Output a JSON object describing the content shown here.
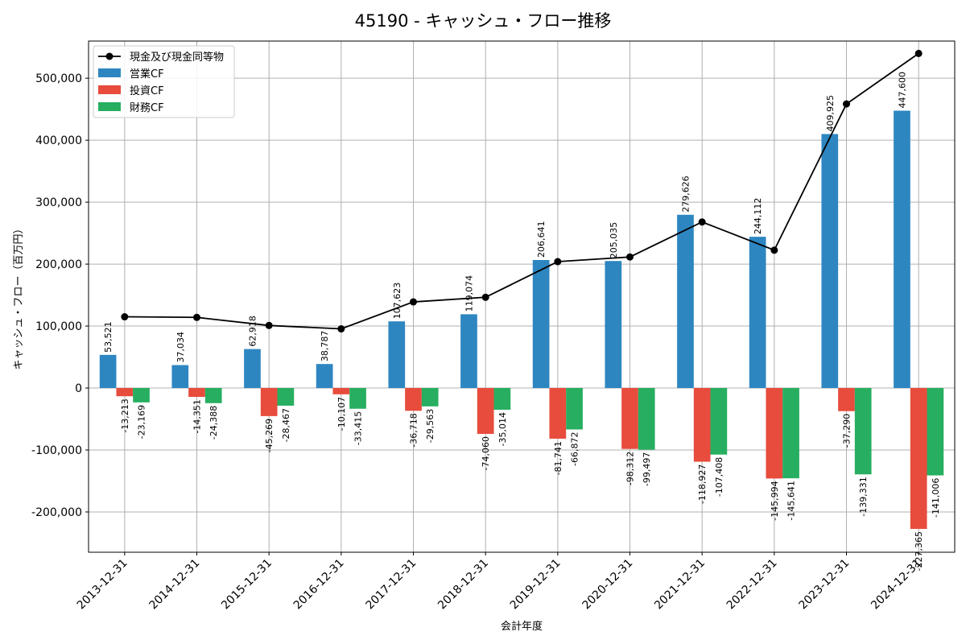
{
  "chart_data": {
    "type": "bar",
    "title": "45190 - キャッシュ・フロー推移",
    "xlabel": "会計年度",
    "ylabel": "キャッシュ・フロー（百万円）",
    "ylim": [
      -265000,
      560000
    ],
    "yticks": [
      -200000,
      -100000,
      0,
      100000,
      200000,
      300000,
      400000,
      500000
    ],
    "ytick_labels": [
      "-200,000",
      "-100,000",
      "0",
      "100,000",
      "200,000",
      "300,000",
      "400,000",
      "500,000"
    ],
    "grid": true,
    "legend_position": "top-left",
    "categories": [
      "2013-12-31",
      "2014-12-31",
      "2015-12-31",
      "2016-12-31",
      "2017-12-31",
      "2018-12-31",
      "2019-12-31",
      "2020-12-31",
      "2021-12-31",
      "2022-12-31",
      "2023-12-31",
      "2024-12-31"
    ],
    "line_series": {
      "name": "現金及び現金同等物",
      "color": "#000000",
      "values": [
        115000,
        114000,
        101000,
        95500,
        139000,
        146500,
        204000,
        211500,
        268000,
        222500,
        458500,
        540000
      ]
    },
    "series": [
      {
        "name": "営業CF",
        "color": "#2e86c1",
        "values": [
          53521,
          37034,
          62918,
          38787,
          107623,
          119074,
          206641,
          205035,
          279626,
          244112,
          409925,
          447600
        ],
        "labels": [
          "53,521",
          "37,034",
          "62,918",
          "38,787",
          "107,623",
          "119,074",
          "206,641",
          "205,035",
          "279,626",
          "244,112",
          "409,925",
          "447,600"
        ]
      },
      {
        "name": "投資CF",
        "color": "#e74c3c",
        "values": [
          -13213,
          -14351,
          -45269,
          -10107,
          -36718,
          -74060,
          -81741,
          -98312,
          -118927,
          -145994,
          -37290,
          -227365
        ],
        "labels": [
          "-13,213",
          "-14,351",
          "-45,269",
          "-10,107",
          "-36,718",
          "-74,060",
          "-81,741",
          "-98,312",
          "-118,927",
          "-145,994",
          "-37,290",
          "-227,365"
        ]
      },
      {
        "name": "財務CF",
        "color": "#27ae60",
        "values": [
          -23169,
          -24388,
          -28467,
          -33415,
          -29563,
          -35014,
          -66872,
          -99497,
          -107408,
          -145641,
          -139331,
          -141006
        ],
        "labels": [
          "-23,169",
          "-24,388",
          "-28,467",
          "-33,415",
          "-29,563",
          "-35,014",
          "-66,872",
          "-99,497",
          "-107,408",
          "-145,641",
          "-139,331",
          "-141,006"
        ]
      }
    ]
  }
}
